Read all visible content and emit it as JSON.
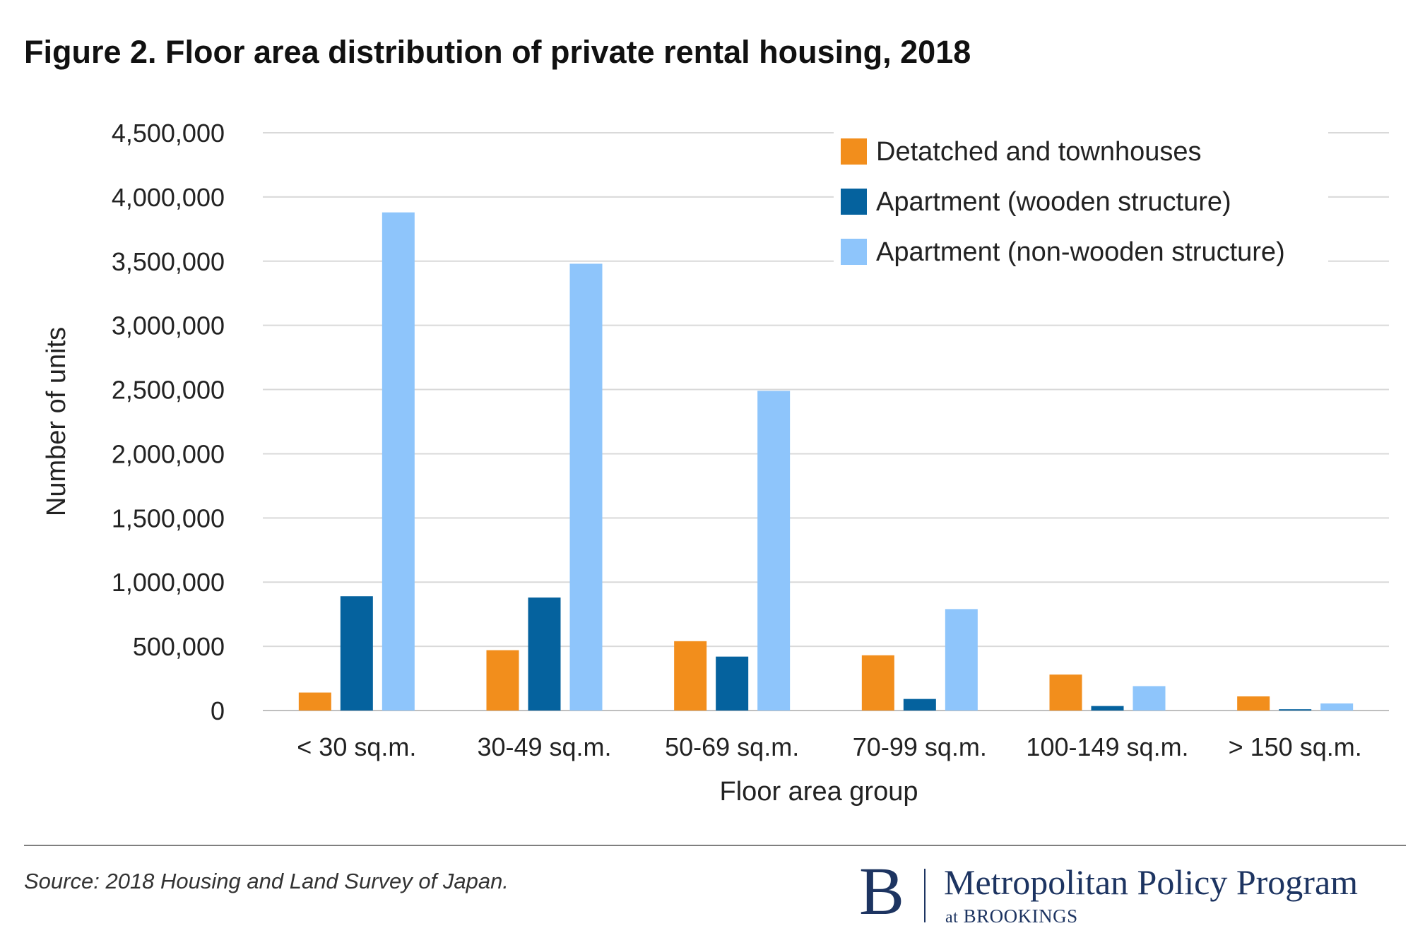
{
  "header": {
    "title": "Figure 2. Floor area distribution of private rental housing, 2018"
  },
  "chart_data": {
    "type": "bar",
    "title": "Figure 2. Floor area distribution of private rental housing, 2018",
    "xlabel": "Floor area group",
    "ylabel": "Number of units",
    "ylim": [
      0,
      4500000
    ],
    "ytick_step": 500000,
    "yticks": [
      "0",
      "500,000",
      "1,000,000",
      "1,500,000",
      "2,000,000",
      "2,500,000",
      "3,000,000",
      "3,500,000",
      "4,000,000",
      "4,500,000"
    ],
    "grid": true,
    "legend_position": "top-right",
    "categories": [
      "< 30 sq.m.",
      "30-49 sq.m.",
      "50-69 sq.m.",
      "70-99 sq.m.",
      "100-149 sq.m.",
      "> 150 sq.m."
    ],
    "series": [
      {
        "name": "Detatched and townhouses",
        "color": "#f28e1c",
        "values": [
          140000,
          470000,
          540000,
          430000,
          280000,
          110000
        ]
      },
      {
        "name": "Apartment (wooden structure)",
        "color": "#05629e",
        "values": [
          890000,
          880000,
          420000,
          90000,
          35000,
          10000
        ]
      },
      {
        "name": "Apartment (non-wooden structure)",
        "color": "#8ec5fb",
        "values": [
          3880000,
          3480000,
          2490000,
          790000,
          190000,
          55000
        ]
      }
    ],
    "colors": {
      "grid": "#d9d9d9",
      "axis": "#bfbfbf",
      "text": "#222222"
    }
  },
  "footer": {
    "source": "Source: 2018 Housing and Land Survey of Japan.",
    "logo_letter": "B",
    "logo_name": "Metropolitan Policy Program",
    "logo_sub_at": "at",
    "logo_sub_org": "BROOKINGS"
  }
}
